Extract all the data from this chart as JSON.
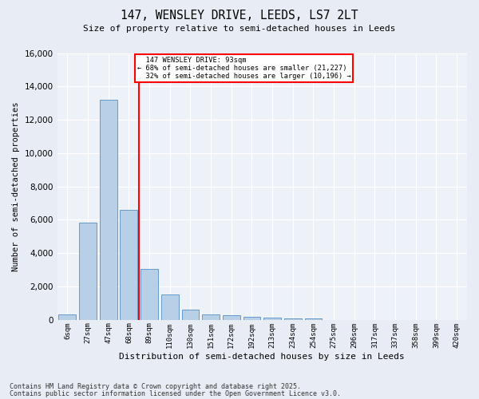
{
  "title": "147, WENSLEY DRIVE, LEEDS, LS7 2LT",
  "subtitle": "Size of property relative to semi-detached houses in Leeds",
  "xlabel": "Distribution of semi-detached houses by size in Leeds",
  "ylabel": "Number of semi-detached properties",
  "bar_labels": [
    "6sqm",
    "27sqm",
    "47sqm",
    "68sqm",
    "89sqm",
    "110sqm",
    "130sqm",
    "151sqm",
    "172sqm",
    "192sqm",
    "213sqm",
    "234sqm",
    "254sqm",
    "275sqm",
    "296sqm",
    "317sqm",
    "337sqm",
    "358sqm",
    "399sqm",
    "420sqm"
  ],
  "bar_values": [
    300,
    5800,
    13200,
    6600,
    3050,
    1500,
    600,
    320,
    250,
    150,
    100,
    80,
    60,
    0,
    0,
    0,
    0,
    0,
    0,
    0
  ],
  "bar_color": "#b8cfe8",
  "bar_edge_color": "#6699cc",
  "vline_color": "red",
  "property_label": "147 WENSLEY DRIVE: 93sqm",
  "pct_smaller": 68,
  "pct_larger": 32,
  "n_smaller": 21227,
  "n_larger": 10196,
  "ylim": [
    0,
    16000
  ],
  "yticks": [
    0,
    2000,
    4000,
    6000,
    8000,
    10000,
    12000,
    14000,
    16000
  ],
  "background_color": "#e8edf5",
  "plot_bg_color": "#edf1f8",
  "footer1": "Contains HM Land Registry data © Crown copyright and database right 2025.",
  "footer2": "Contains public sector information licensed under the Open Government Licence v3.0."
}
